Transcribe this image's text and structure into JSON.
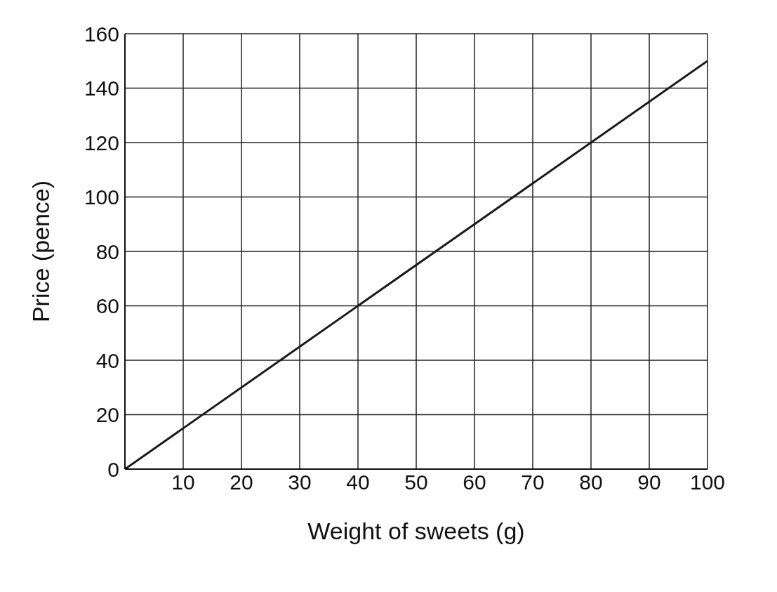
{
  "chart_data": {
    "type": "line",
    "xlabel": "Weight of sweets (g)",
    "ylabel": "Price (pence)",
    "x": [
      0,
      100
    ],
    "series": [
      {
        "color": "#1a1a1a",
        "values": [
          0,
          150
        ]
      }
    ],
    "xlim": [
      0,
      100
    ],
    "xticks": [
      {
        "value": 0,
        "label": null
      },
      10,
      20,
      30,
      40,
      50,
      60,
      70,
      80,
      90,
      100
    ],
    "ylim": [
      0,
      160
    ],
    "yticks": [
      0,
      20,
      40,
      60,
      80,
      100,
      120,
      140,
      160
    ],
    "grid": true,
    "marker": "none",
    "line_style": "solid"
  }
}
